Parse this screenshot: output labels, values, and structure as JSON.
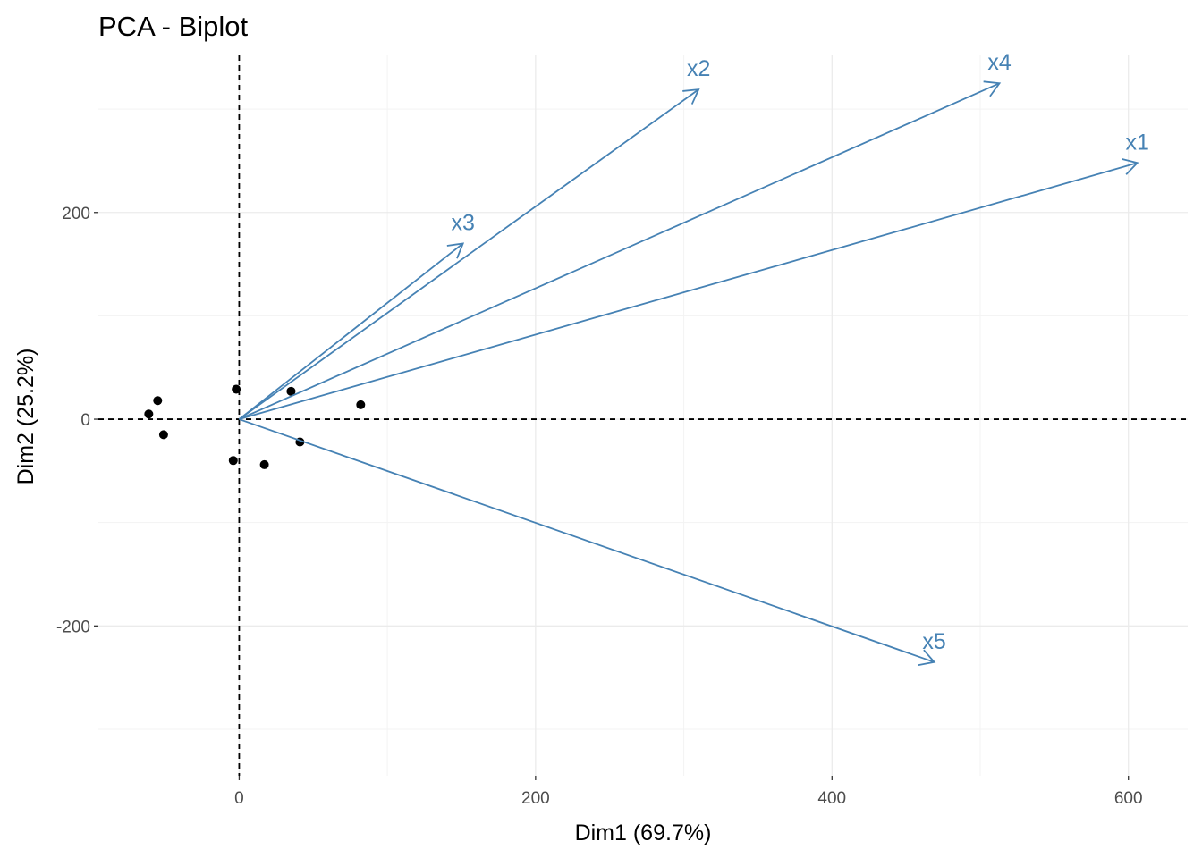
{
  "chart_data": {
    "type": "scatter",
    "title": "PCA - Biplot",
    "xlabel": "Dim1 (69.7%)",
    "ylabel": "Dim2 (25.2%)",
    "xlim": [
      -95,
      640
    ],
    "ylim": [
      -345,
      352
    ],
    "x_ticks": [
      0,
      200,
      400,
      600
    ],
    "y_ticks": [
      -200,
      0,
      200
    ],
    "grid": true,
    "reference_lines": {
      "x": 0,
      "y": 0,
      "style": "dashed"
    },
    "colors": {
      "points": "#000000",
      "arrows": "#4682B4"
    },
    "points": [
      {
        "x": -61,
        "y": 5
      },
      {
        "x": -55,
        "y": 18
      },
      {
        "x": -51,
        "y": -15
      },
      {
        "x": -2,
        "y": 29
      },
      {
        "x": -4,
        "y": -40
      },
      {
        "x": 17,
        "y": -44
      },
      {
        "x": 35,
        "y": 27
      },
      {
        "x": 41,
        "y": -22
      },
      {
        "x": 82,
        "y": 14
      }
    ],
    "variables": [
      {
        "name": "x1",
        "x": 606,
        "y": 248
      },
      {
        "name": "x2",
        "x": 310,
        "y": 319
      },
      {
        "name": "x3",
        "x": 151,
        "y": 170
      },
      {
        "name": "x4",
        "x": 513,
        "y": 325
      },
      {
        "name": "x5",
        "x": 469,
        "y": -235
      }
    ]
  }
}
